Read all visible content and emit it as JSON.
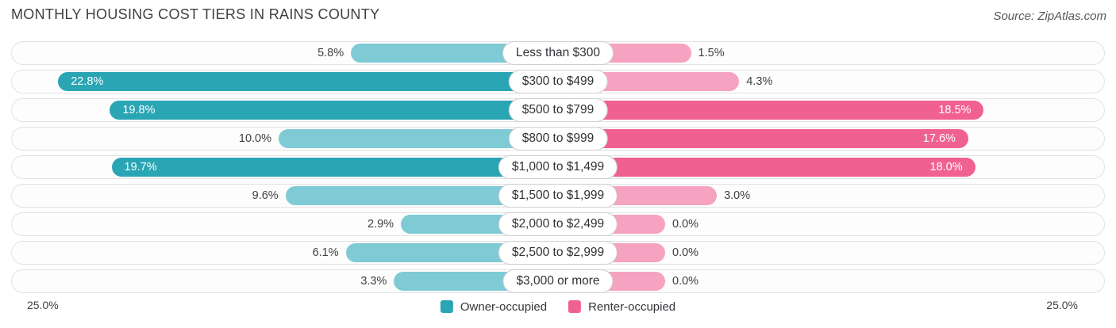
{
  "header": {
    "title": "MONTHLY HOUSING COST TIERS IN RAINS COUNTY",
    "source": "Source: ZipAtlas.com"
  },
  "axis": {
    "left_label": "25.0%",
    "right_label": "25.0%"
  },
  "chart_data": {
    "type": "bar",
    "orientation": "diverging-horizontal",
    "title": "Monthly Housing Cost Tiers in Rains County",
    "categories": [
      "Less than $300",
      "$300 to $499",
      "$500 to $799",
      "$800 to $999",
      "$1,000 to $1,499",
      "$1,500 to $1,999",
      "$2,000 to $2,499",
      "$2,500 to $2,999",
      "$3,000 or more"
    ],
    "series": [
      {
        "name": "Owner-occupied",
        "values": [
          5.8,
          22.8,
          19.8,
          10.0,
          19.7,
          9.6,
          2.9,
          6.1,
          3.3
        ]
      },
      {
        "name": "Renter-occupied",
        "values": [
          1.5,
          4.3,
          18.5,
          17.6,
          18.0,
          3.0,
          0.0,
          0.0,
          0.0
        ]
      }
    ],
    "value_suffix": "%",
    "xlim": [
      0,
      25
    ],
    "axis_tick_labels": [
      "25.0%",
      "25.0%"
    ],
    "legend_position": "bottom-center",
    "legend": [
      {
        "label": "Owner-occupied",
        "color": "#2aa5b4"
      },
      {
        "label": "Renter-occupied",
        "color": "#f06191"
      }
    ],
    "colors": {
      "owner_dark": "#2aa5b4",
      "owner_light": "#7ecbd5",
      "renter_dark": "#f06191",
      "renter_light": "#f5a3c0",
      "track_background": "#fdfdfe",
      "track_border": "#e2e2e4"
    }
  }
}
